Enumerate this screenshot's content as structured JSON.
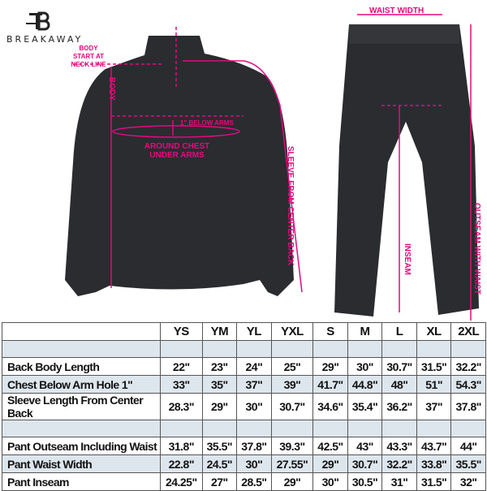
{
  "brand": {
    "name": "BREAKAWAY"
  },
  "annotations": {
    "body_start": "BODY START AT NECK LINE",
    "body": "BODY",
    "below_arms": "1\" BELOW ARMS",
    "around_chest": "AROUND CHEST UNDER ARMS",
    "sleeve": "SLEEVE FROM CENTER BACK",
    "waist_width": "WAIST WIDTH",
    "inseam": "INSEAM",
    "outseam": "OUTSEAM WITH WAIST"
  },
  "colors": {
    "annotation": "#e5097f",
    "garment": "#2a2c30",
    "shade": "#dde6ed"
  },
  "table": {
    "sizes": [
      "YS",
      "YM",
      "YL",
      "YXL",
      "S",
      "M",
      "L",
      "XL",
      "2XL"
    ],
    "rows": [
      {
        "label": "Back Body Length",
        "values": [
          "22\"",
          "23\"",
          "24\"",
          "25\"",
          "29\"",
          "30\"",
          "30.7\"",
          "31.5\"",
          "32.2\""
        ]
      },
      {
        "label": "Chest Below Arm Hole 1\"",
        "values": [
          "33\"",
          "35\"",
          "37\"",
          "39\"",
          "41.7\"",
          "44.8\"",
          "48\"",
          "51\"",
          "54.3\""
        ]
      },
      {
        "label": "Sleeve Length From Center Back",
        "values": [
          "28.3\"",
          "29\"",
          "30\"",
          "30.7\"",
          "34.6\"",
          "35.4\"",
          "36.2\"",
          "37\"",
          "37.8\""
        ]
      },
      {
        "label": "Pant Outseam Including Waist",
        "values": [
          "31.8\"",
          "35.5\"",
          "37.8\"",
          "39.3\"",
          "42.5\"",
          "43\"",
          "43.3\"",
          "43.7\"",
          "44\""
        ]
      },
      {
        "label": "Pant Waist Width",
        "values": [
          "22.8\"",
          "24.5\"",
          "30\"",
          "27.55\"",
          "29\"",
          "30.7\"",
          "32.2\"",
          "33.8\"",
          "35.5\""
        ]
      },
      {
        "label": "Pant Inseam",
        "values": [
          "24.25\"",
          "27\"",
          "28.5\"",
          "29\"",
          "30\"",
          "30.5\"",
          "31\"",
          "31.5\"",
          "32\""
        ]
      }
    ]
  }
}
